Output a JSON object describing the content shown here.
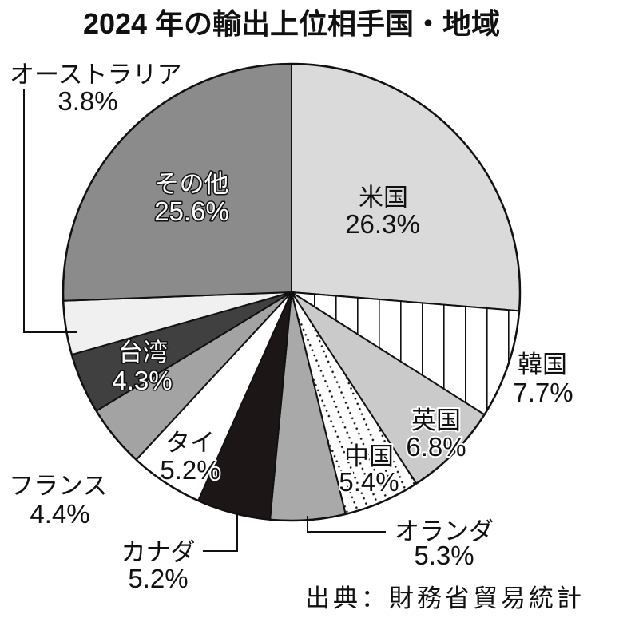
{
  "chart_data": {
    "type": "pie",
    "title": "2024 年の輸出上位相手国・地域",
    "categories": [
      "米国",
      "韓国",
      "英国",
      "中国",
      "オランダ",
      "カナダ",
      "タイ",
      "フランス",
      "台湾",
      "オーストラリア",
      "その他"
    ],
    "values": [
      26.3,
      7.7,
      6.8,
      5.4,
      5.3,
      5.2,
      5.2,
      4.4,
      4.3,
      3.8,
      25.6
    ],
    "unit": "%",
    "colors": [
      "#dadada",
      "#ffffff",
      "#cacaca",
      "#ffffff",
      "#a9a9a9",
      "#1c1616",
      "#ffffff",
      "#a3a3a3",
      "#404040",
      "#f0f0f0",
      "#8b8b8b"
    ],
    "source": "出典：財務省貿易統計"
  }
}
